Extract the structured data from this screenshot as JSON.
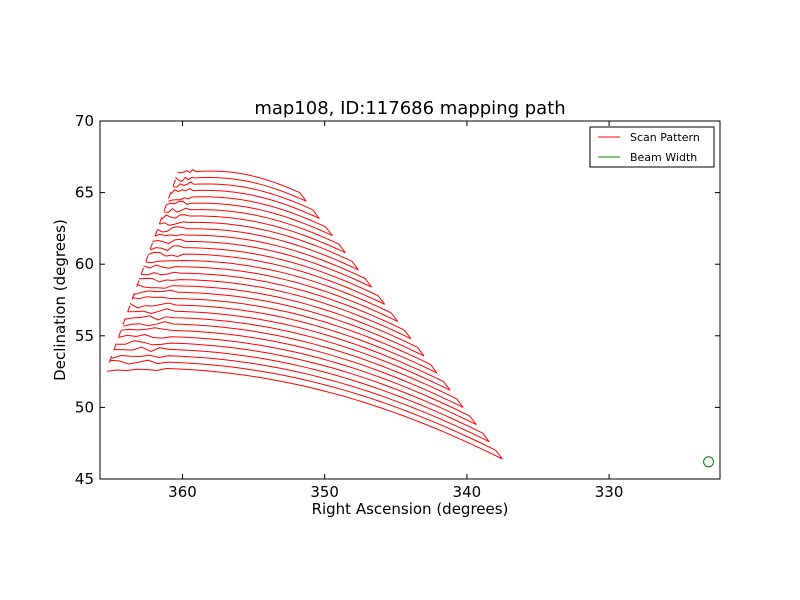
{
  "chart_data": {
    "type": "line",
    "title": "map108, ID:117686 mapping path",
    "xlabel": "Right Ascension (degrees)",
    "ylabel": "Declination (degrees)",
    "xlim": [
      365.8,
      322.2
    ],
    "ylim": [
      45,
      70
    ],
    "xticks": [
      360,
      350,
      340,
      330
    ],
    "yticks": [
      45,
      50,
      55,
      60,
      65,
      70
    ],
    "grid": false,
    "legend_position": "top-right",
    "scan_lines": {
      "count": 32,
      "dec_start": 52.7,
      "dec_step": 0.44
    },
    "series": [
      {
        "name": "Scan Pattern",
        "color": "#ff0000",
        "style": "line"
      },
      {
        "name": "Beam Width",
        "color": "#008000",
        "style": "circle",
        "center": [
          323.0,
          46.2
        ]
      }
    ]
  }
}
